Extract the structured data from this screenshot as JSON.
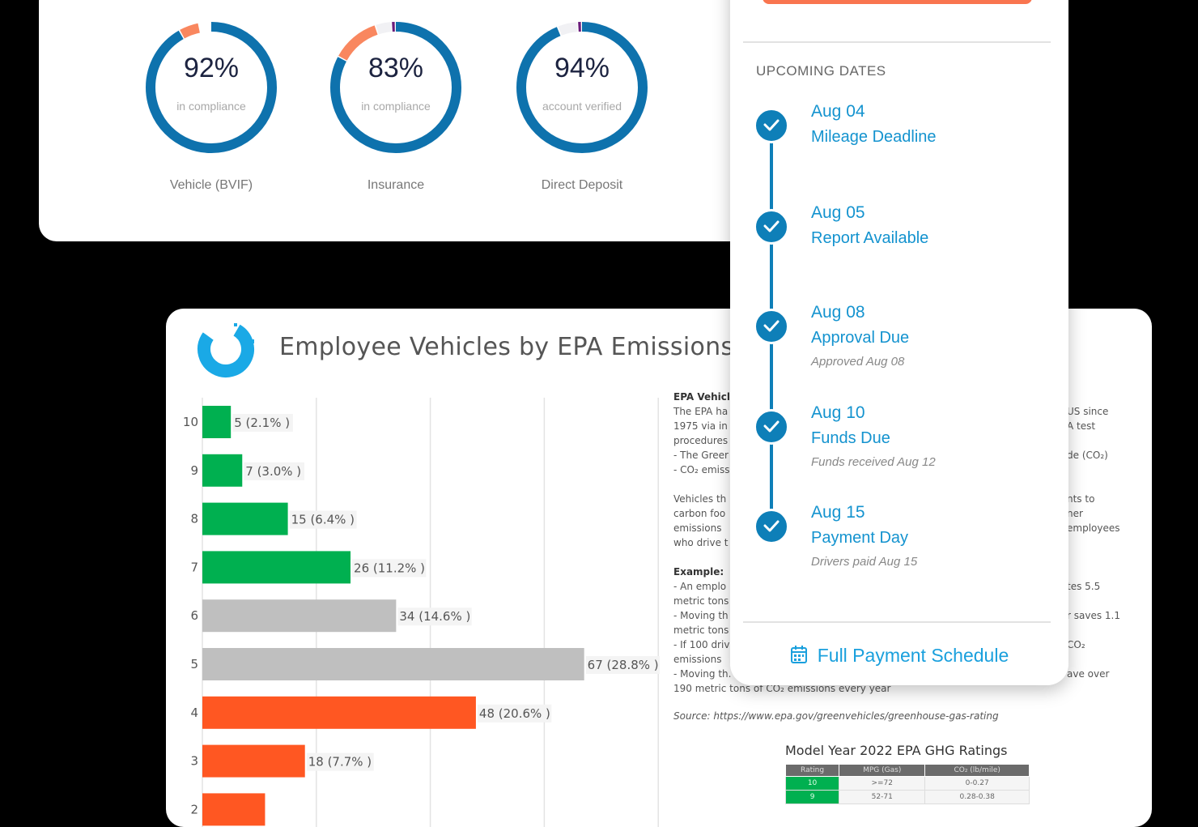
{
  "compliance": [
    {
      "value": "92%",
      "sub": "in compliance",
      "label": "Vehicle (BVIF)",
      "segments": [
        {
          "pct": 92,
          "color": "#0e72ad"
        },
        {
          "pct": 5,
          "color": "#f9875f"
        }
      ]
    },
    {
      "value": "83%",
      "sub": "in compliance",
      "label": "Insurance",
      "segments": [
        {
          "pct": 83,
          "color": "#0e72ad"
        },
        {
          "pct": 12,
          "color": "#f9875f"
        },
        {
          "pct": 4,
          "color": "#f1f1f4"
        },
        {
          "pct": 1,
          "color": "#6a1b7a"
        }
      ]
    },
    {
      "value": "94%",
      "sub": "account verified",
      "label": "Direct Deposit",
      "segments": [
        {
          "pct": 94,
          "color": "#0e72ad"
        },
        {
          "pct": 5,
          "color": "#f1f1f4"
        },
        {
          "pct": 1,
          "color": "#6a1b7a"
        }
      ]
    }
  ],
  "schedule": {
    "heading": "UPCOMING DATES",
    "events": [
      {
        "date": "Aug 04",
        "title": "Mileage Deadline",
        "note": ""
      },
      {
        "date": "Aug 05",
        "title": "Report Available",
        "note": ""
      },
      {
        "date": "Aug 08",
        "title": "Approval Due",
        "note": "Approved Aug 08"
      },
      {
        "date": "Aug 10",
        "title": "Funds Due",
        "note": "Funds received Aug 12"
      },
      {
        "date": "Aug 15",
        "title": "Payment Day",
        "note": "Drivers paid Aug 15"
      }
    ],
    "link": "Full Payment Schedule"
  },
  "report": {
    "title": "Employee Vehicles by EPA Emissions Ra",
    "text_left": [
      "EPA Vehicl",
      "The EPA ha",
      "1975 via in",
      "procedures",
      "- The Greer",
      "- CO₂ emiss",
      "",
      "Vehicles th",
      "carbon foo",
      "emissions",
      "who drive t",
      "",
      "Example:",
      "- An emplo",
      "metric tons",
      "- Moving th",
      "metric tons",
      "- If 100 driv",
      "emissions",
      "- Moving th.",
      "190 metric tons of CO₂ emissions every year"
    ],
    "text_right": [
      "",
      "US since",
      "A test",
      "",
      "de (CO₂)",
      "",
      "",
      "nts to",
      "ner",
      "employees",
      "",
      "",
      "",
      "tes 5.5",
      "",
      "r saves 1.1",
      "",
      "CO₂",
      "",
      "ave over",
      ""
    ],
    "source": "Source: https://www.epa.gov/greenvehicles/greenhouse-gas-rating",
    "table": {
      "title": "Model Year 2022 EPA GHG Ratings",
      "headers": [
        "Rating",
        "MPG (Gas)",
        "CO₂ (lb/mile)"
      ],
      "rows": [
        [
          "10",
          ">=72",
          "0-0.27"
        ],
        [
          "9",
          "52-71",
          "0.28-0.38"
        ]
      ]
    }
  },
  "chart_data": {
    "type": "bar",
    "orientation": "horizontal",
    "categories": [
      "10",
      "9",
      "8",
      "7",
      "6",
      "5",
      "4",
      "3",
      "2"
    ],
    "values": [
      5,
      7,
      15,
      26,
      34,
      67,
      48,
      18,
      11
    ],
    "labels": [
      "5 (2.1% )",
      "7 (3.0% )",
      "15 (6.4% )",
      "26 (11.2% )",
      "34 (14.6% )",
      "67 (28.8% )",
      "48 (20.6% )",
      "18 (7.7% )",
      ""
    ],
    "colors": [
      "#00b050",
      "#00b050",
      "#00b050",
      "#00b050",
      "#bfbfbf",
      "#bfbfbf",
      "#ff5722",
      "#ff5722",
      "#ff5722"
    ],
    "xlim": [
      0,
      80
    ],
    "grid": true
  }
}
